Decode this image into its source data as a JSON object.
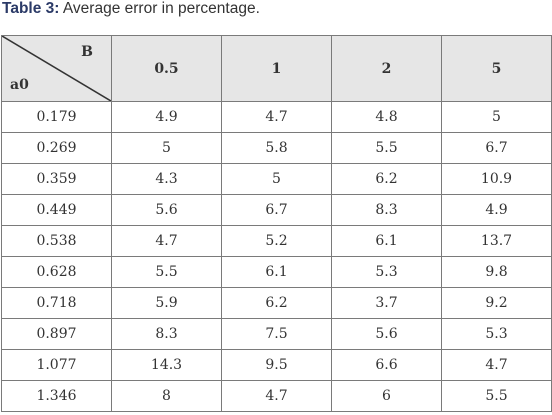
{
  "caption": {
    "label": "Table 3:",
    "text": " Average error in percentage."
  },
  "table": {
    "corner_col_label": "B",
    "corner_row_label": "a0",
    "columns": [
      "0.5",
      "1",
      "2",
      "5"
    ],
    "rows": [
      {
        "a0": "0.179",
        "values": [
          "4.9",
          "4.7",
          "4.8",
          "5"
        ]
      },
      {
        "a0": "0.269",
        "values": [
          "5",
          "5.8",
          "5.5",
          "6.7"
        ]
      },
      {
        "a0": "0.359",
        "values": [
          "4.3",
          "5",
          "6.2",
          "10.9"
        ]
      },
      {
        "a0": "0.449",
        "values": [
          "5.6",
          "6.7",
          "8.3",
          "4.9"
        ]
      },
      {
        "a0": "0.538",
        "values": [
          "4.7",
          "5.2",
          "6.1",
          "13.7"
        ]
      },
      {
        "a0": "0.628",
        "values": [
          "5.5",
          "6.1",
          "5.3",
          "9.8"
        ]
      },
      {
        "a0": "0.718",
        "values": [
          "5.9",
          "6.2",
          "3.7",
          "9.2"
        ]
      },
      {
        "a0": "0.897",
        "values": [
          "8.3",
          "7.5",
          "5.6",
          "5.3"
        ]
      },
      {
        "a0": "1.077",
        "values": [
          "14.3",
          "9.5",
          "6.6",
          "4.7"
        ]
      },
      {
        "a0": "1.346",
        "values": [
          "8",
          "4.7",
          "6",
          "5.5"
        ]
      }
    ]
  }
}
